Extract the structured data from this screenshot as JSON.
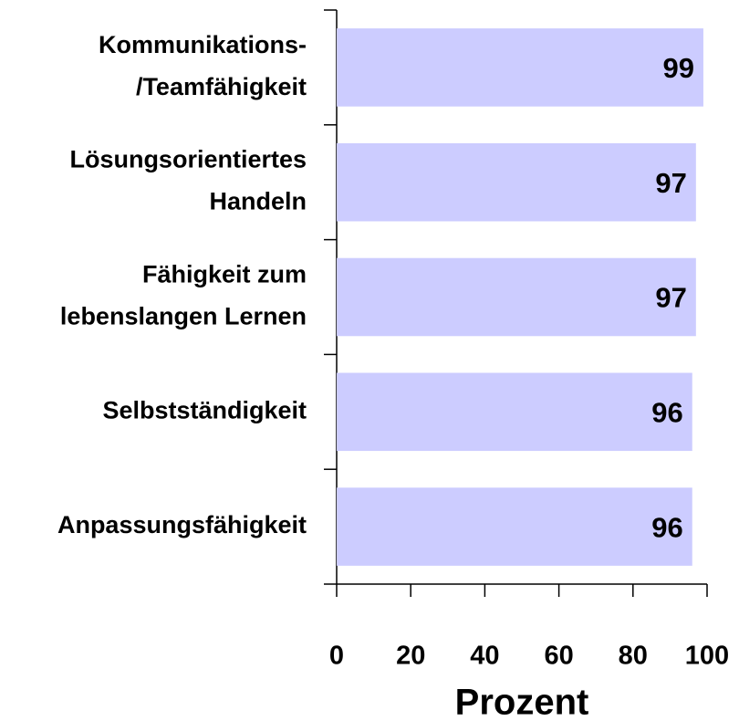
{
  "chart_data": {
    "type": "barh",
    "categories": [
      "Kommunikations-\n/Teamfähigkeit",
      "Lösungsorientiertes\nHandeln",
      "Fähigkeit zum\nlebenslangen Lernen",
      "Selbstständigkeit",
      "Anpassungsfähigkeit"
    ],
    "values": [
      99,
      97,
      97,
      96,
      96
    ],
    "color": "#ccccff",
    "xlabel": "Prozent",
    "xlim": [
      0,
      100
    ],
    "xticks": [
      0,
      20,
      40,
      60,
      80,
      100
    ]
  }
}
